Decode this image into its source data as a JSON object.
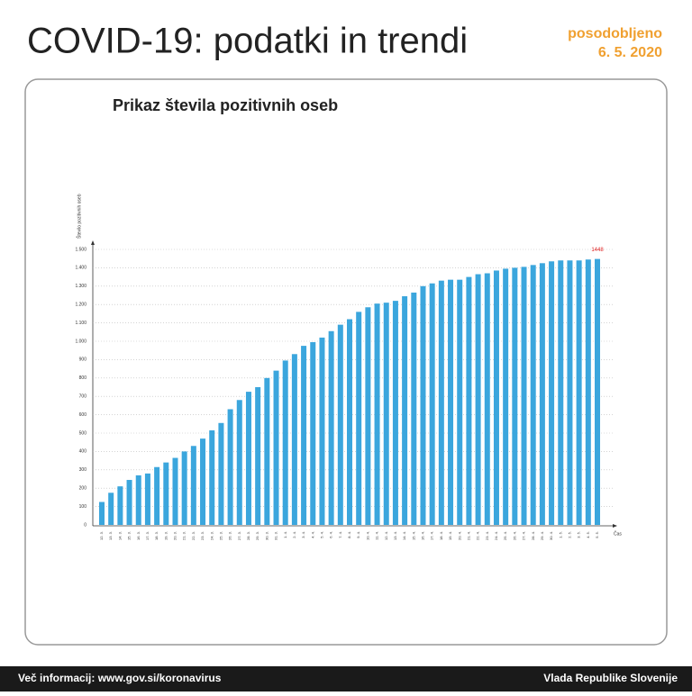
{
  "header": {
    "title": "COVID-19: podatki in trendi",
    "updated_label": "posodobljeno",
    "updated_date": "6. 5. 2020"
  },
  "footer": {
    "left": "Več informacij: www.gov.si/koronavirus",
    "right": "Vlada Republike Slovenije"
  },
  "chart_data": {
    "type": "bar",
    "title": "Prikaz števila pozitivnih oseb",
    "y_label": "Število pozitivnih oseb",
    "x_label": "Čas",
    "color": "#3ba6dd",
    "grid": true,
    "categories": [
      "12. 3.",
      "13. 3.",
      "14. 3.",
      "15. 3.",
      "16. 3.",
      "17. 3.",
      "18. 3.",
      "19. 3.",
      "20. 3.",
      "21. 3.",
      "22. 3.",
      "23. 3.",
      "24. 3.",
      "25. 3.",
      "26. 3.",
      "27. 3.",
      "28. 3.",
      "29. 3.",
      "30. 3.",
      "31. 3.",
      "1. 4.",
      "2. 4.",
      "3. 4.",
      "4. 4.",
      "5. 4.",
      "6. 4.",
      "7. 4.",
      "8. 4.",
      "9. 4.",
      "10. 4.",
      "11. 4.",
      "12. 4.",
      "13. 4.",
      "14. 4.",
      "15. 4.",
      "16. 4.",
      "17. 4.",
      "18. 4.",
      "19. 4.",
      "20. 4.",
      "21. 4.",
      "22. 4.",
      "23. 4.",
      "24. 4.",
      "25. 4.",
      "26. 4.",
      "27. 4.",
      "28. 4.",
      "29. 4.",
      "30. 4.",
      "1. 5.",
      "2. 5.",
      "3. 5.",
      "4. 5.",
      "5. 5."
    ],
    "values": [
      125,
      175,
      210,
      245,
      270,
      280,
      315,
      340,
      365,
      400,
      430,
      470,
      515,
      555,
      630,
      680,
      725,
      750,
      800,
      840,
      895,
      930,
      975,
      995,
      1020,
      1055,
      1090,
      1120,
      1160,
      1185,
      1205,
      1210,
      1220,
      1245,
      1265,
      1300,
      1315,
      1330,
      1335,
      1335,
      1350,
      1365,
      1370,
      1385,
      1395,
      1400,
      1405,
      1415,
      1425,
      1435,
      1440,
      1440,
      1440,
      1445,
      1448
    ],
    "ylim": [
      0,
      1500
    ],
    "yticks": [
      0,
      100,
      200,
      300,
      400,
      500,
      600,
      700,
      800,
      900,
      {
        "value": 1000,
        "label": "1.000"
      },
      {
        "value": 1100,
        "label": "1.100"
      },
      {
        "value": 1200,
        "label": "1.200"
      },
      {
        "value": 1300,
        "label": "1.300"
      },
      {
        "value": 1400,
        "label": "1.400"
      },
      {
        "value": 1500,
        "label": "1.500"
      }
    ]
  }
}
